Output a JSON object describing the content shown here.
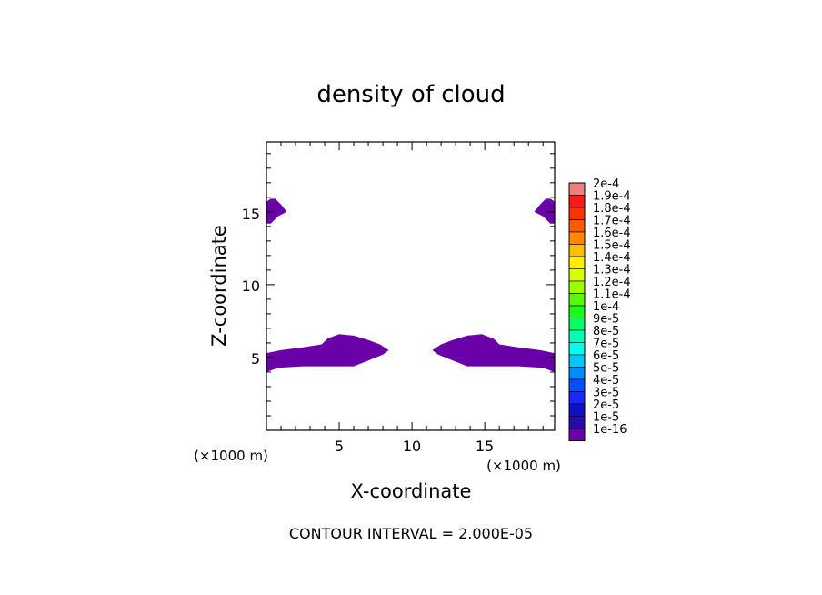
{
  "chart_data": {
    "type": "heatmap",
    "title": "density of cloud",
    "xlabel": "X-coordinate",
    "ylabel": "Z-coordinate",
    "x_unit": "(×1000 m)",
    "y_unit": "(×1000 m)",
    "xlim": [
      0,
      19.8
    ],
    "ylim": [
      0,
      19.8
    ],
    "x_ticks": [
      5,
      10,
      15
    ],
    "y_ticks": [
      5,
      10,
      15
    ],
    "x_tick_labels": [
      "5",
      "10",
      "15"
    ],
    "y_tick_labels": [
      "5",
      "10",
      "15"
    ],
    "footer": "CONTOUR INTERVAL = 2.000E-05",
    "grid": false,
    "legend_placement": "right",
    "colorbar": {
      "labels": [
        "2e-4",
        "1.9e-4",
        "1.8e-4",
        "1.7e-4",
        "1.6e-4",
        "1.5e-4",
        "1.4e-4",
        "1.3e-4",
        "1.2e-4",
        "1.1e-4",
        "1e-4",
        "9e-5",
        "8e-5",
        "7e-5",
        "6e-5",
        "5e-5",
        "4e-5",
        "3e-5",
        "2e-5",
        "1e-5",
        "1e-16"
      ],
      "colors": [
        "#f08080",
        "#ff1a1a",
        "#ff3300",
        "#ff5a00",
        "#ff8a00",
        "#ffbf00",
        "#ffee00",
        "#d8ff00",
        "#9cff00",
        "#55ff00",
        "#1aff1a",
        "#00ff66",
        "#00ffb0",
        "#00ffee",
        "#00c8ff",
        "#008cff",
        "#0050ff",
        "#1a28ff",
        "#1010c8",
        "#2a0aa8",
        "#6a00a8"
      ]
    },
    "regions": [
      {
        "name": "top-left",
        "level": "1e-16",
        "points": [
          [
            0,
            14.2
          ],
          [
            0.3,
            14.2
          ],
          [
            0.8,
            14.7
          ],
          [
            1.4,
            15.0
          ],
          [
            1.0,
            15.5
          ],
          [
            0.6,
            15.9
          ],
          [
            0.3,
            15.9
          ],
          [
            0,
            15.7
          ]
        ]
      },
      {
        "name": "top-right",
        "level": "1e-16",
        "points": [
          [
            19.8,
            14.2
          ],
          [
            19.5,
            14.2
          ],
          [
            19.0,
            14.7
          ],
          [
            18.4,
            15.0
          ],
          [
            18.8,
            15.5
          ],
          [
            19.2,
            15.9
          ],
          [
            19.5,
            15.9
          ],
          [
            19.8,
            15.7
          ]
        ]
      },
      {
        "name": "bottom-left",
        "level": "1e-16",
        "points": [
          [
            0,
            4.0
          ],
          [
            0.8,
            4.3
          ],
          [
            2.5,
            4.4
          ],
          [
            4.5,
            4.4
          ],
          [
            6.0,
            4.4
          ],
          [
            7.0,
            4.8
          ],
          [
            8.0,
            5.2
          ],
          [
            8.4,
            5.5
          ],
          [
            7.8,
            5.9
          ],
          [
            7.0,
            6.2
          ],
          [
            6.0,
            6.5
          ],
          [
            5.0,
            6.6
          ],
          [
            4.2,
            6.3
          ],
          [
            3.8,
            5.9
          ],
          [
            2.5,
            5.7
          ],
          [
            1.0,
            5.5
          ],
          [
            0,
            5.3
          ]
        ]
      },
      {
        "name": "bottom-right",
        "level": "1e-16",
        "points": [
          [
            19.8,
            4.0
          ],
          [
            19.0,
            4.3
          ],
          [
            17.3,
            4.4
          ],
          [
            15.3,
            4.4
          ],
          [
            13.8,
            4.4
          ],
          [
            12.8,
            4.8
          ],
          [
            11.8,
            5.2
          ],
          [
            11.4,
            5.5
          ],
          [
            12.0,
            5.9
          ],
          [
            12.8,
            6.2
          ],
          [
            13.8,
            6.5
          ],
          [
            14.8,
            6.6
          ],
          [
            15.6,
            6.3
          ],
          [
            16.0,
            5.9
          ],
          [
            17.3,
            5.7
          ],
          [
            18.8,
            5.5
          ],
          [
            19.8,
            5.3
          ]
        ]
      }
    ]
  }
}
